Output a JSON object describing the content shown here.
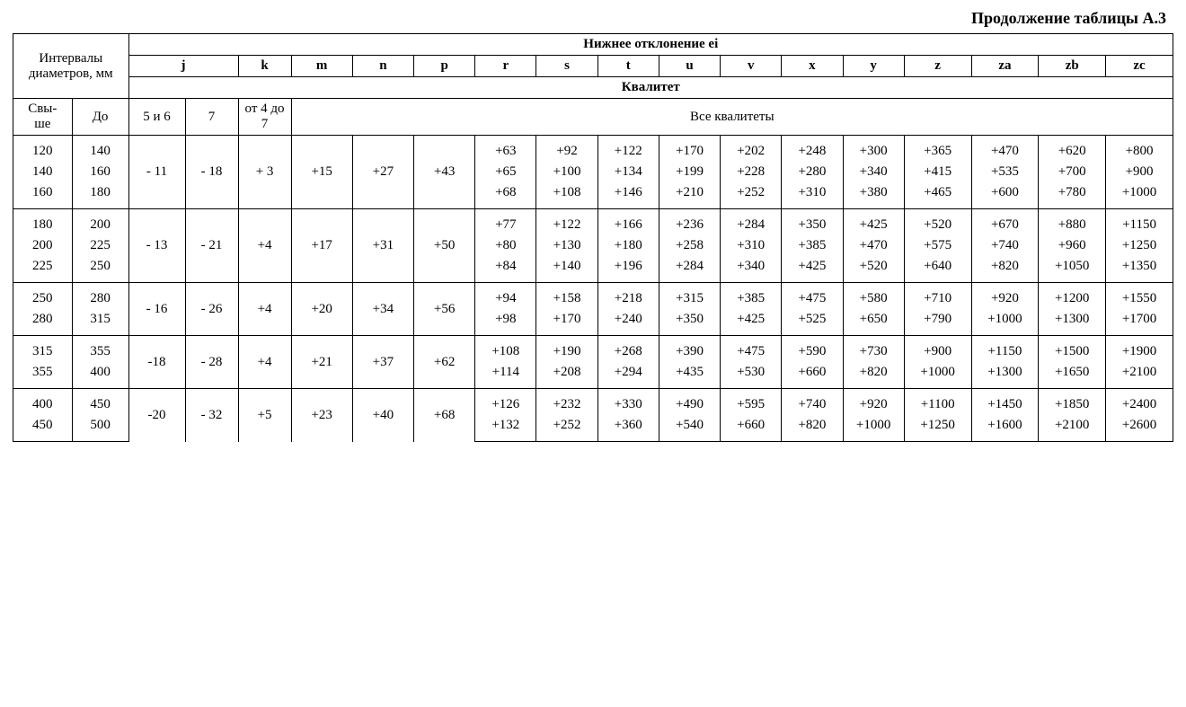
{
  "caption": "Продолжение таблицы А.3",
  "header": {
    "top": "Нижнее отклонение ei",
    "intervals": "Интервалы диаметров, мм",
    "from": "Свы-\nше",
    "to": "До",
    "kvalitet": "Квалитет",
    "all_kvalitets": "Все квалитеты",
    "j_col1": "5 и 6",
    "j_col2": "7",
    "k_col": "от 4 до 7",
    "letters": [
      "j",
      "k",
      "m",
      "n",
      "p",
      "r",
      "s",
      "t",
      "u",
      "v",
      "x",
      "y",
      "z",
      "za",
      "zb",
      "zc"
    ]
  },
  "groups": [
    {
      "shared": {
        "j1": "- 11",
        "j2": "- 18",
        "k": "+ 3",
        "m": "+15",
        "n": "+27",
        "p": "+43"
      },
      "rows": [
        {
          "from": "120",
          "to": "140",
          "r": "+63",
          "s": "+92",
          "t": "+122",
          "u": "+170",
          "v": "+202",
          "x": "+248",
          "y": "+300",
          "z": "+365",
          "za": "+470",
          "zb": "+620",
          "zc": "+800"
        },
        {
          "from": "140",
          "to": "160",
          "r": "+65",
          "s": "+100",
          "t": "+134",
          "u": "+199",
          "v": "+228",
          "x": "+280",
          "y": "+340",
          "z": "+415",
          "za": "+535",
          "zb": "+700",
          "zc": "+900"
        },
        {
          "from": "160",
          "to": "180",
          "r": "+68",
          "s": "+108",
          "t": "+146",
          "u": "+210",
          "v": "+252",
          "x": "+310",
          "y": "+380",
          "z": "+465",
          "za": "+600",
          "zb": "+780",
          "zc": "+1000"
        }
      ]
    },
    {
      "shared": {
        "j1": "- 13",
        "j2": "- 21",
        "k": "+4",
        "m": "+17",
        "n": "+31",
        "p": "+50"
      },
      "rows": [
        {
          "from": "180",
          "to": "200",
          "r": "+77",
          "s": "+122",
          "t": "+166",
          "u": "+236",
          "v": "+284",
          "x": "+350",
          "y": "+425",
          "z": "+520",
          "za": "+670",
          "zb": "+880",
          "zc": "+1150"
        },
        {
          "from": "200",
          "to": "225",
          "r": "+80",
          "s": "+130",
          "t": "+180",
          "u": "+258",
          "v": "+310",
          "x": "+385",
          "y": "+470",
          "z": "+575",
          "za": "+740",
          "zb": "+960",
          "zc": "+1250"
        },
        {
          "from": "225",
          "to": "250",
          "r": "+84",
          "s": "+140",
          "t": "+196",
          "u": "+284",
          "v": "+340",
          "x": "+425",
          "y": "+520",
          "z": "+640",
          "za": "+820",
          "zb": "+1050",
          "zc": "+1350"
        }
      ]
    },
    {
      "shared": {
        "j1": "- 16",
        "j2": "- 26",
        "k": "+4",
        "m": "+20",
        "n": "+34",
        "p": "+56"
      },
      "rows": [
        {
          "from": "250",
          "to": "280",
          "r": "+94",
          "s": "+158",
          "t": "+218",
          "u": "+315",
          "v": "+385",
          "x": "+475",
          "y": "+580",
          "z": "+710",
          "za": "+920",
          "zb": "+1200",
          "zc": "+1550"
        },
        {
          "from": "280",
          "to": "315",
          "r": "+98",
          "s": "+170",
          "t": "+240",
          "u": "+350",
          "v": "+425",
          "x": "+525",
          "y": "+650",
          "z": "+790",
          "za": "+1000",
          "zb": "+1300",
          "zc": "+1700"
        }
      ]
    },
    {
      "shared": {
        "j1": "-18",
        "j2": "- 28",
        "k": "+4",
        "m": "+21",
        "n": "+37",
        "p": "+62"
      },
      "rows": [
        {
          "from": "315",
          "to": "355",
          "r": "+108",
          "s": "+190",
          "t": "+268",
          "u": "+390",
          "v": "+475",
          "x": "+590",
          "y": "+730",
          "z": "+900",
          "za": "+1150",
          "zb": "+1500",
          "zc": "+1900"
        },
        {
          "from": "355",
          "to": "400",
          "r": "+114",
          "s": "+208",
          "t": "+294",
          "u": "+435",
          "v": "+530",
          "x": "+660",
          "y": "+820",
          "z": "+1000",
          "za": "+1300",
          "zb": "+1650",
          "zc": "+2100"
        }
      ]
    },
    {
      "shared": {
        "j1": "-20",
        "j2": "- 32",
        "k": "+5",
        "m": "+23",
        "n": "+40",
        "p": "+68"
      },
      "rows": [
        {
          "from": "400",
          "to": "450",
          "r": "+126",
          "s": "+232",
          "t": "+330",
          "u": "+490",
          "v": "+595",
          "x": "+740",
          "y": "+920",
          "z": "+1100",
          "za": "+1450",
          "zb": "+1850",
          "zc": "+2400"
        },
        {
          "from": "450",
          "to": "500",
          "r": "+132",
          "s": "+252",
          "t": "+360",
          "u": "+540",
          "v": "+660",
          "x": "+820",
          "y": "+1000",
          "z": "+1250",
          "za": "+1600",
          "zb": "+2100",
          "zc": "+2600"
        }
      ]
    }
  ]
}
